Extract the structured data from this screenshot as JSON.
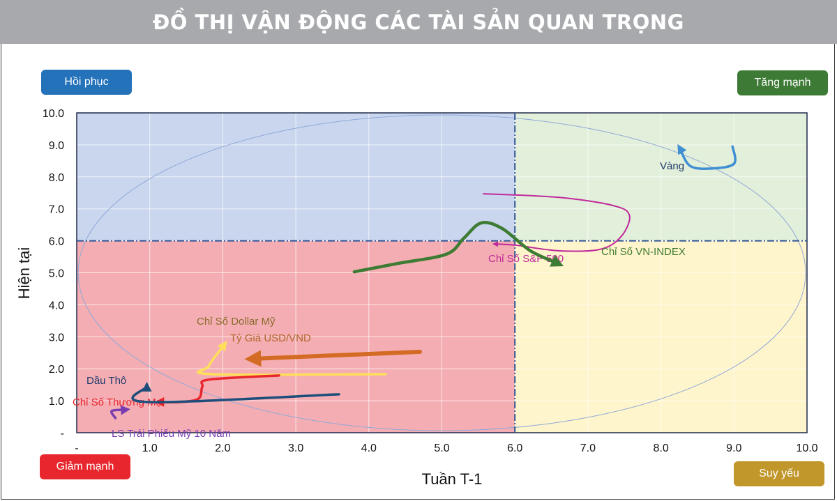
{
  "title": "ĐỒ THỊ VẬN ĐỘNG CÁC TÀI SẢN QUAN TRỌNG",
  "quadrants": {
    "top_left": {
      "label": "Hồi phục",
      "color": "#2472b9"
    },
    "top_right": {
      "label": "Tăng mạnh",
      "color": "#3d7a35"
    },
    "bottom_left": {
      "label": "Giảm mạnh",
      "color": "#e8262d"
    },
    "bottom_right": {
      "label": "Suy yếu",
      "color": "#c1962a"
    }
  },
  "chart_data": {
    "type": "line",
    "xlabel": "Tuần T-1",
    "ylabel": "Hiện tại",
    "xlim": [
      0,
      10
    ],
    "ylim": [
      0,
      10
    ],
    "x_ticks": [
      "-",
      "1.0",
      "2.0",
      "3.0",
      "4.0",
      "5.0",
      "6.0",
      "7.0",
      "8.0",
      "9.0",
      "10.0"
    ],
    "y_ticks": [
      "-",
      "1.0",
      "2.0",
      "3.0",
      "4.0",
      "5.0",
      "6.0",
      "7.0",
      "8.0",
      "9.0",
      "10.0"
    ],
    "grid": true,
    "center_lines": {
      "x": 6,
      "y": 6
    },
    "region_colors": {
      "top_left": "#c9d6ee",
      "top_right": "#e2efda",
      "bottom_left": "#f4aeb3",
      "bottom_right": "#fff5cc"
    },
    "series": [
      {
        "name": "Vàng",
        "color": "#3f8fd2",
        "points": [
          [
            8.98,
            8.95
          ],
          [
            9.0,
            8.41
          ],
          [
            8.69,
            8.26
          ],
          [
            8.4,
            8.34
          ],
          [
            8.26,
            8.89
          ]
        ]
      },
      {
        "name": "Chỉ Số S&P 500",
        "color": "#c0299b",
        "points": [
          [
            5.57,
            7.47
          ],
          [
            6.59,
            7.36
          ],
          [
            7.35,
            7.1
          ],
          [
            7.57,
            6.78
          ],
          [
            7.45,
            6.12
          ],
          [
            7.16,
            5.73
          ],
          [
            6.59,
            5.69
          ],
          [
            6.02,
            5.86
          ],
          [
            5.73,
            5.9
          ]
        ]
      },
      {
        "name": "Chỉ Số VN-INDEX",
        "color": "#3e7b33",
        "points": [
          [
            3.8,
            5.03
          ],
          [
            4.39,
            5.29
          ],
          [
            5.06,
            5.58
          ],
          [
            5.3,
            6.08
          ],
          [
            5.54,
            6.56
          ],
          [
            5.83,
            6.38
          ],
          [
            6.21,
            5.69
          ],
          [
            6.59,
            5.29
          ]
        ]
      },
      {
        "name": "Tỷ Giá USD/VND",
        "color": "#d46b25",
        "points": [
          [
            4.7,
            2.53
          ],
          [
            2.41,
            2.31
          ]
        ]
      },
      {
        "name": "Chỉ Số Dollar Mỹ",
        "color": "#ffdf5a",
        "points": [
          [
            4.23,
            1.83
          ],
          [
            1.86,
            1.83
          ],
          [
            1.81,
            2.09
          ],
          [
            2.02,
            2.75
          ]
        ]
      },
      {
        "name": "Chỉ Số Thương Mại",
        "color": "#e8262d",
        "points": [
          [
            2.77,
            1.79
          ],
          [
            1.81,
            1.66
          ],
          [
            1.72,
            1.44
          ],
          [
            1.67,
            1.07
          ],
          [
            1.43,
            0.96
          ],
          [
            1.13,
            0.96
          ]
        ]
      },
      {
        "name": "Dầu Thô",
        "color": "#1e4d7b",
        "points": [
          [
            3.59,
            1.2
          ],
          [
            0.96,
            0.96
          ],
          [
            0.96,
            1.44
          ]
        ]
      },
      {
        "name": "LS Trái Phiếu Mỹ 10 Năm",
        "color": "#7a3db0",
        "points": [
          [
            0.53,
            0.46
          ],
          [
            0.48,
            0.68
          ],
          [
            0.67,
            0.72
          ]
        ]
      }
    ]
  }
}
